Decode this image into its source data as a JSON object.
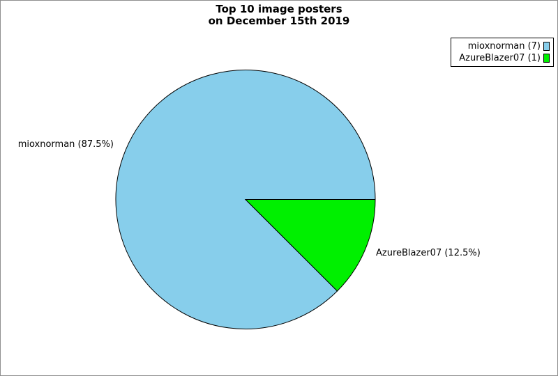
{
  "title": {
    "line1": "Top 10 image posters",
    "line2": "on December 15th 2019"
  },
  "labels": {
    "slice1": "mioxnorman (87.5%)",
    "slice2": "AzureBlazer07 (12.5%)"
  },
  "legend": {
    "items": [
      {
        "label": "mioxnorman (7)",
        "color": "#87CEEB"
      },
      {
        "label": "AzureBlazer07 (1)",
        "color": "#00F000"
      }
    ]
  },
  "chart_data": {
    "type": "pie",
    "title": "Top 10 image posters on December 15th 2019",
    "categories": [
      "mioxnorman",
      "AzureBlazer07"
    ],
    "values": [
      7,
      1
    ],
    "percentages": [
      87.5,
      12.5
    ],
    "colors": [
      "#87CEEB",
      "#00F000"
    ],
    "slice_labels": [
      "mioxnorman (87.5%)",
      "AzureBlazer07 (12.5%)"
    ],
    "legend_entries": [
      "mioxnorman (7)",
      "AzureBlazer07 (1)"
    ],
    "legend_position": "top-right",
    "start_angle_deg": 0,
    "direction": "counterclockwise",
    "stroke_color": "#000000",
    "background": "#ffffff"
  }
}
